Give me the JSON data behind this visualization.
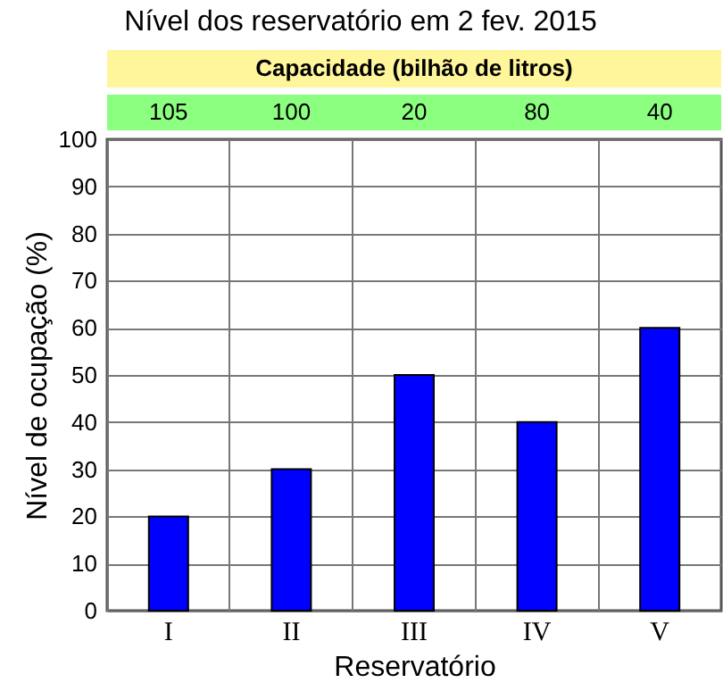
{
  "chart_data": {
    "type": "bar",
    "title": "Nível dos reservatório em 2 fev. 2015",
    "xlabel": "Reservatório",
    "ylabel": "Nível de ocupação (%)",
    "categories": [
      "I",
      "II",
      "III",
      "IV",
      "V"
    ],
    "values": [
      20,
      30,
      50,
      40,
      60
    ],
    "color": "#0000ff",
    "ylim": [
      0,
      100
    ],
    "yticks": [
      0,
      10,
      20,
      30,
      40,
      50,
      60,
      70,
      80,
      90,
      100
    ],
    "grid": true,
    "annotations": [
      "Capacidade (bilhão de litros)",
      "105",
      "100",
      "20",
      "80",
      "40"
    ]
  }
}
